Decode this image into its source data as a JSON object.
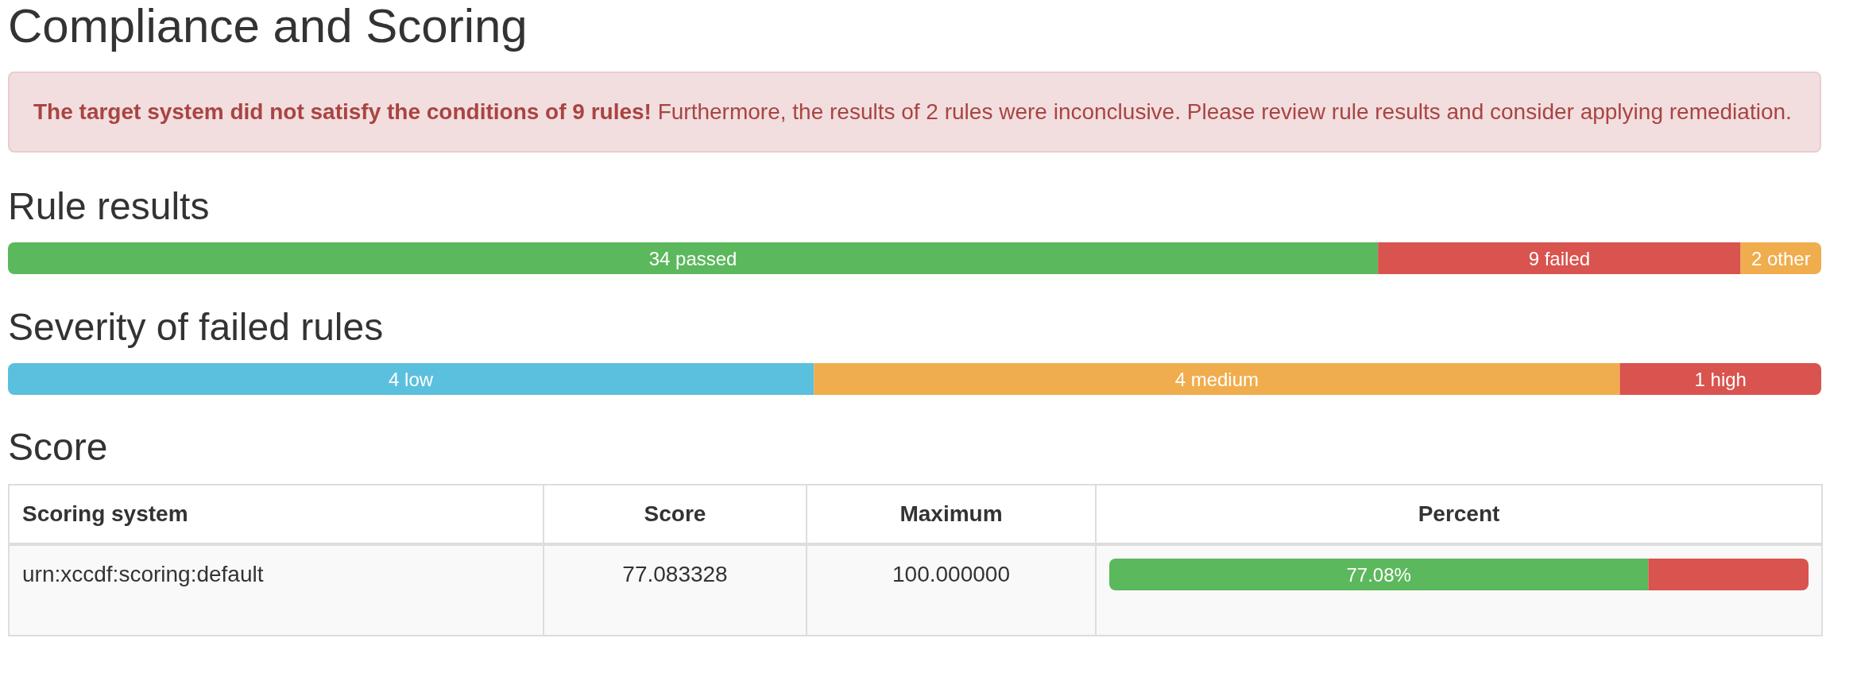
{
  "chart_data": [
    {
      "type": "other",
      "title": "Compliance and Scoring",
      "annotations": [
        "The target system did not satisfy the conditions of 9 rules!",
        "Furthermore, the results of 2 rules were inconclusive. Please review rule results and consider applying remediation."
      ]
    },
    {
      "type": "bar",
      "title": "Rule results",
      "orientation": "horizontal",
      "stacked": true,
      "tick_labels": false,
      "categories": [
        null
      ],
      "series": [
        {
          "color": "#5cb85c",
          "values": [
            34
          ],
          "value_labels": [
            "34 passed"
          ]
        },
        {
          "color": "#d9534f",
          "values": [
            9
          ],
          "value_labels": [
            "9 failed"
          ]
        },
        {
          "color": "#f0ad4e",
          "values": [
            2
          ],
          "value_labels": [
            "2 other"
          ]
        }
      ]
    },
    {
      "type": "bar",
      "title": "Severity of failed rules",
      "orientation": "horizontal",
      "stacked": true,
      "tick_labels": false,
      "categories": [
        null
      ],
      "series": [
        {
          "color": "#5bc0de",
          "values": [
            4
          ],
          "value_labels": [
            "4 low"
          ]
        },
        {
          "color": "#f0ad4e",
          "values": [
            4
          ],
          "value_labels": [
            "4 medium"
          ]
        },
        {
          "color": "#d9534f",
          "values": [
            1
          ],
          "value_labels": [
            "1 high"
          ]
        }
      ]
    },
    {
      "type": "other",
      "title": "Score",
      "annotations": [
        "Scoring system",
        "Score",
        "Maximum",
        "Percent",
        "urn:xccdf:scoring:default",
        "77.083328",
        "100.000000"
      ]
    },
    {
      "type": "bar",
      "orientation": "horizontal",
      "stacked": true,
      "tick_labels": false,
      "categories": [
        null
      ],
      "series": [
        {
          "color": "#5cb85c",
          "values": [
            77.08
          ],
          "value_labels": [
            "77.08%"
          ]
        },
        {
          "color": "#d9534f",
          "values": [
            22.92
          ]
        }
      ]
    }
  ]
}
